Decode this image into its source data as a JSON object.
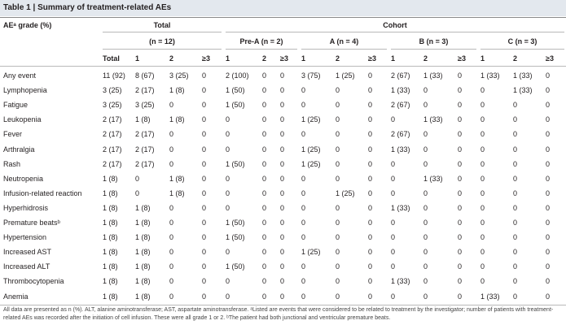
{
  "title": "Table 1 | Summary of treatment-related AEs",
  "table": {
    "header": [
      [
        "AEᵃ grade (%)",
        "Total",
        "Cohort"
      ],
      [
        "(n = 12)",
        "Pre-A (n = 2)",
        "A (n = 4)",
        "B (n = 3)",
        "C (n = 3)"
      ],
      [
        "Total",
        "1",
        "2",
        "≥3",
        "1",
        "2",
        "≥3",
        "1",
        "2",
        "≥3",
        "1",
        "2",
        "≥3",
        "1",
        "2",
        "≥3"
      ]
    ],
    "rows": [
      [
        "Any event",
        "11 (92)",
        "8 (67)",
        "3 (25)",
        "0",
        "2 (100)",
        "0",
        "0",
        "3 (75)",
        "1 (25)",
        "0",
        "2 (67)",
        "1 (33)",
        "0",
        "1 (33)",
        "1 (33)",
        "0"
      ],
      [
        "Lymphopenia",
        "3 (25)",
        "2 (17)",
        "1 (8)",
        "0",
        "1 (50)",
        "0",
        "0",
        "0",
        "0",
        "0",
        "1 (33)",
        "0",
        "0",
        "0",
        "1 (33)",
        "0"
      ],
      [
        "Fatigue",
        "3 (25)",
        "3 (25)",
        "0",
        "0",
        "1 (50)",
        "0",
        "0",
        "0",
        "0",
        "0",
        "2 (67)",
        "0",
        "0",
        "0",
        "0",
        "0"
      ],
      [
        "Leukopenia",
        "2 (17)",
        "1 (8)",
        "1 (8)",
        "0",
        "0",
        "0",
        "0",
        "1 (25)",
        "0",
        "0",
        "0",
        "1 (33)",
        "0",
        "0",
        "0",
        "0"
      ],
      [
        "Fever",
        "2 (17)",
        "2 (17)",
        "0",
        "0",
        "0",
        "0",
        "0",
        "0",
        "0",
        "0",
        "2 (67)",
        "0",
        "0",
        "0",
        "0",
        "0"
      ],
      [
        "Arthralgia",
        "2 (17)",
        "2 (17)",
        "0",
        "0",
        "0",
        "0",
        "0",
        "1 (25)",
        "0",
        "0",
        "1 (33)",
        "0",
        "0",
        "0",
        "0",
        "0"
      ],
      [
        "Rash",
        "2 (17)",
        "2 (17)",
        "0",
        "0",
        "1 (50)",
        "0",
        "0",
        "1 (25)",
        "0",
        "0",
        "0",
        "0",
        "0",
        "0",
        "0",
        "0"
      ],
      [
        "Neutropenia",
        "1 (8)",
        "0",
        "1 (8)",
        "0",
        "0",
        "0",
        "0",
        "0",
        "0",
        "0",
        "0",
        "1 (33)",
        "0",
        "0",
        "0",
        "0"
      ],
      [
        "Infusion-related reaction",
        "1 (8)",
        "0",
        "1 (8)",
        "0",
        "0",
        "0",
        "0",
        "0",
        "1 (25)",
        "0",
        "0",
        "0",
        "0",
        "0",
        "0",
        "0"
      ],
      [
        "Hyperhidrosis",
        "1 (8)",
        "1 (8)",
        "0",
        "0",
        "0",
        "0",
        "0",
        "0",
        "0",
        "0",
        "1 (33)",
        "0",
        "0",
        "0",
        "0",
        "0"
      ],
      [
        "Premature beatsᵇ",
        "1 (8)",
        "1 (8)",
        "0",
        "0",
        "1 (50)",
        "0",
        "0",
        "0",
        "0",
        "0",
        "0",
        "0",
        "0",
        "0",
        "0",
        "0"
      ],
      [
        "Hypertension",
        "1 (8)",
        "1 (8)",
        "0",
        "0",
        "1 (50)",
        "0",
        "0",
        "0",
        "0",
        "0",
        "0",
        "0",
        "0",
        "0",
        "0",
        "0"
      ],
      [
        "Increased AST",
        "1 (8)",
        "1 (8)",
        "0",
        "0",
        "0",
        "0",
        "0",
        "1 (25)",
        "0",
        "0",
        "0",
        "0",
        "0",
        "0",
        "0",
        "0"
      ],
      [
        "Increased ALT",
        "1 (8)",
        "1 (8)",
        "0",
        "0",
        "1 (50)",
        "0",
        "0",
        "0",
        "0",
        "0",
        "0",
        "0",
        "0",
        "0",
        "0",
        "0"
      ],
      [
        "Thrombocytopenia",
        "1 (8)",
        "1 (8)",
        "0",
        "0",
        "0",
        "0",
        "0",
        "0",
        "0",
        "0",
        "1 (33)",
        "0",
        "0",
        "0",
        "0",
        "0"
      ],
      [
        "Anemia",
        "1 (8)",
        "1 (8)",
        "0",
        "0",
        "0",
        "0",
        "0",
        "0",
        "0",
        "0",
        "0",
        "0",
        "0",
        "1 (33)",
        "0",
        "0"
      ]
    ]
  },
  "footnote": "All data are presented as n (%). ALT, alanine aminotransferase; AST, aspartate aminotransferase. ᵃListed are events that were considered to be related to treatment by the investigator; number of patients with treatment-related AEs was recorded after the initiation of cell infusion. These were all grade 1 or 2. ᵇThe patient had both junctional and ventricular premature beats."
}
